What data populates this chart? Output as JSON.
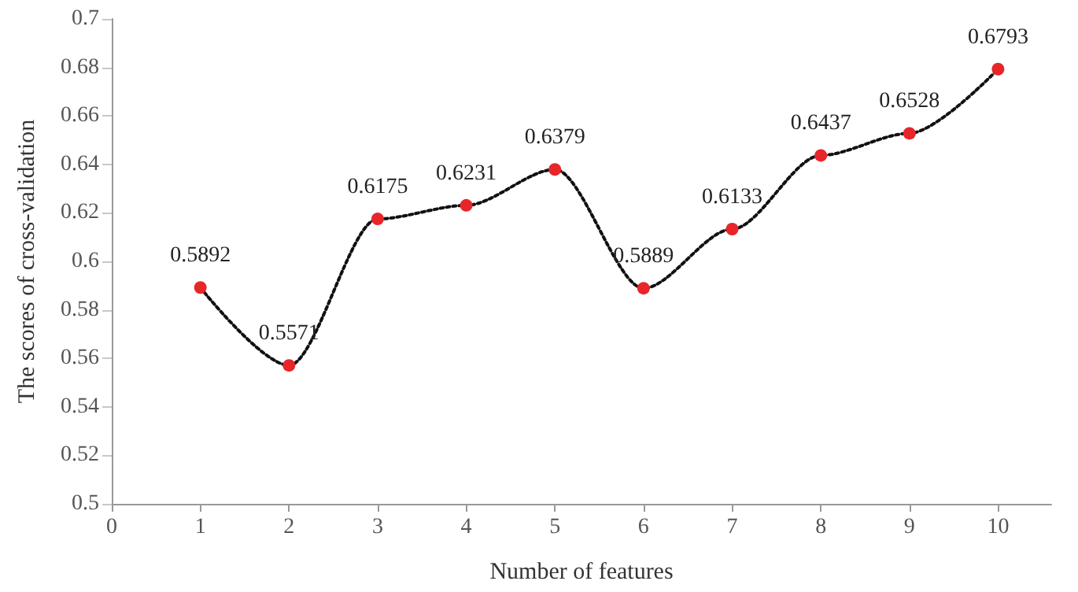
{
  "chart_data": {
    "type": "line",
    "xlabel": "Number of features",
    "ylabel": "The scores of cross-validation",
    "x": [
      1,
      2,
      3,
      4,
      5,
      6,
      7,
      8,
      9,
      10
    ],
    "series": [
      {
        "color": "#111111",
        "marker": "none",
        "line_style": "dotted",
        "values": [
          0.5892,
          0.5571,
          0.6175,
          0.6231,
          0.6379,
          0.5889,
          0.6133,
          0.6437,
          0.6528,
          0.6793
        ]
      },
      {
        "type": "scatter",
        "color": "#e8262a",
        "marker": "circle",
        "values": [
          0.5892,
          0.5571,
          0.6175,
          0.6231,
          0.6379,
          0.5889,
          0.6133,
          0.6437,
          0.6528,
          0.6793
        ],
        "value_labels": [
          "0.5892",
          "0.5571",
          "0.6175",
          "0.6231",
          "0.6379",
          "0.5889",
          "0.6133",
          "0.6437",
          "0.6528",
          "0.6793"
        ]
      }
    ],
    "xlim": [
      0,
      10.6
    ],
    "xticks": [
      0,
      1,
      2,
      3,
      4,
      5,
      6,
      7,
      8,
      9,
      10
    ],
    "ylim": [
      0.5,
      0.7
    ],
    "yticks": [
      0.5,
      0.52,
      0.54,
      0.56,
      0.58,
      0.6,
      0.62,
      0.64,
      0.66,
      0.68,
      0.7
    ],
    "grid": false
  }
}
